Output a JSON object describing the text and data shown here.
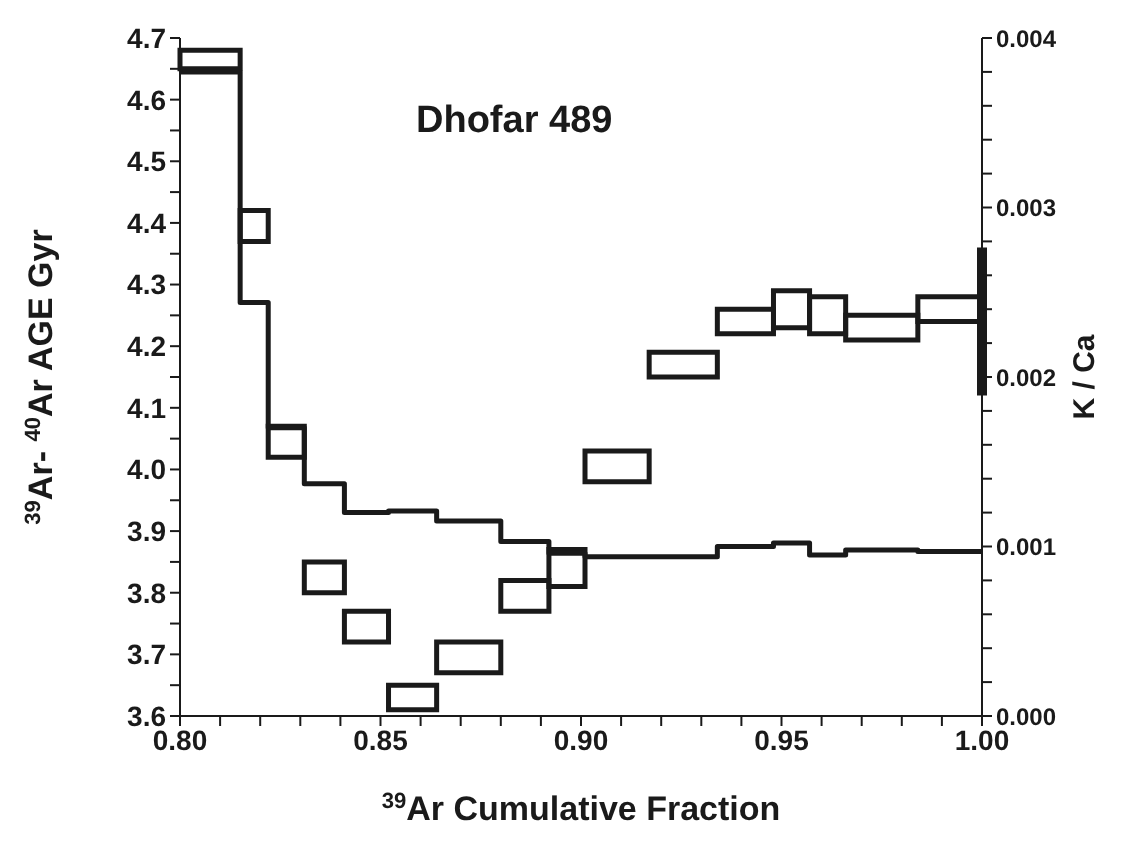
{
  "chart_data": {
    "type": "bar",
    "annotations": [
      "Dhofar 489"
    ],
    "xlabel": "$^{39}$Ar Cumulative Fraction",
    "ylabel": "$^{39}$Ar- $^{40}$Ar AGE Gyr",
    "y2label": "K / Ca",
    "xlim": [
      0.8,
      1.0
    ],
    "xticks": [
      {
        "value": 0.8,
        "label": "0.80"
      },
      {
        "value": 0.81,
        "label": null
      },
      {
        "value": 0.82,
        "label": null
      },
      {
        "value": 0.83,
        "label": null
      },
      {
        "value": 0.84,
        "label": null
      },
      {
        "value": 0.85,
        "label": "0.85"
      },
      {
        "value": 0.86,
        "label": null
      },
      {
        "value": 0.87,
        "label": null
      },
      {
        "value": 0.88,
        "label": null
      },
      {
        "value": 0.89,
        "label": null
      },
      {
        "value": 0.9,
        "label": "0.90"
      },
      {
        "value": 0.91,
        "label": null
      },
      {
        "value": 0.92,
        "label": null
      },
      {
        "value": 0.93,
        "label": null
      },
      {
        "value": 0.94,
        "label": null
      },
      {
        "value": 0.95,
        "label": "0.95"
      },
      {
        "value": 0.96,
        "label": null
      },
      {
        "value": 0.97,
        "label": null
      },
      {
        "value": 0.98,
        "label": null
      },
      {
        "value": 0.99,
        "label": null
      },
      {
        "value": 1.0,
        "label": "1.00"
      }
    ],
    "ylim": [
      3.6,
      4.7
    ],
    "yticks": [
      3.6,
      {
        "value": 3.65,
        "label": null
      },
      3.7,
      {
        "value": 3.75,
        "label": null
      },
      3.8,
      {
        "value": 3.85,
        "label": null
      },
      3.9,
      {
        "value": 3.95,
        "label": null
      },
      {
        "value": 4.0,
        "label": "4.0"
      },
      {
        "value": 4.05,
        "label": null
      },
      4.1,
      {
        "value": 4.15,
        "label": null
      },
      4.2,
      {
        "value": 4.25,
        "label": null
      },
      4.3,
      {
        "value": 4.35,
        "label": null
      },
      4.4,
      {
        "value": 4.45,
        "label": null
      },
      4.5,
      {
        "value": 4.55,
        "label": null
      },
      4.6,
      {
        "value": 4.65,
        "label": null
      },
      4.7
    ],
    "y2lim": [
      0,
      0.004
    ],
    "y2ticks": [
      {
        "value": 0,
        "label": "0.000"
      },
      {
        "value": 0.0002,
        "label": null
      },
      {
        "value": 0.0004,
        "label": null
      },
      {
        "value": 0.0006,
        "label": null
      },
      {
        "value": 0.0008,
        "label": null
      },
      {
        "value": 0.001,
        "label": "0.001"
      },
      {
        "value": 0.0012,
        "label": null
      },
      {
        "value": 0.0014,
        "label": null
      },
      {
        "value": 0.0016,
        "label": null
      },
      {
        "value": 0.0018,
        "label": null
      },
      {
        "value": 0.002,
        "label": "0.002"
      },
      {
        "value": 0.0022,
        "label": null
      },
      {
        "value": 0.0024,
        "label": null
      },
      {
        "value": 0.0026,
        "label": null
      },
      {
        "value": 0.0028,
        "label": null
      },
      {
        "value": 0.003,
        "label": "0.003"
      },
      {
        "value": 0.0032,
        "label": null
      },
      {
        "value": 0.0034,
        "label": null
      },
      {
        "value": 0.0036,
        "label": null
      },
      {
        "value": 0.0038,
        "label": null
      },
      {
        "value": 0.004,
        "label": "0.004"
      }
    ],
    "grid": false,
    "legend": false,
    "series": [
      {
        "color": "#1a1a1a",
        "x": [
          0.8075,
          0.8185,
          0.8265,
          0.836,
          0.8465,
          0.858,
          0.872,
          0.886,
          0.8965,
          0.909,
          0.9255,
          0.941,
          0.9525,
          0.9615,
          0.975,
          0.992
        ],
        "base": [
          4.65,
          4.37,
          4.02,
          3.8,
          3.72,
          3.61,
          3.67,
          3.77,
          3.81,
          3.98,
          4.15,
          4.22,
          4.23,
          4.22,
          4.21,
          4.24
        ],
        "values": [
          0.03,
          0.05,
          0.05,
          0.05,
          0.05,
          0.04,
          0.05,
          0.05,
          0.06,
          0.05,
          0.04,
          0.04,
          0.06,
          0.06,
          0.04,
          0.04
        ]
      },
      {
        "type": "step",
        "axis": "y2",
        "color": "#1a1a1a",
        "x": [
          0.8,
          0.815,
          0.822,
          0.831,
          0.841,
          0.852,
          0.864,
          0.88,
          0.892,
          0.901,
          0.917,
          0.934,
          0.948,
          0.957,
          0.966,
          0.984,
          1.0
        ],
        "values": [
          0.0038,
          0.00244,
          0.0017,
          0.00137,
          0.0012,
          0.00121,
          0.00115,
          0.00103,
          0.00096,
          0.00094,
          0.00094,
          0.001,
          0.00102,
          0.00095,
          0.00098,
          0.00097,
          0.00097
        ]
      },
      {
        "type": "bar",
        "color": "#1a1a1a",
        "x": [
          1.0
        ],
        "base": [
          4.12
        ],
        "values": [
          0.24
        ]
      }
    ]
  }
}
